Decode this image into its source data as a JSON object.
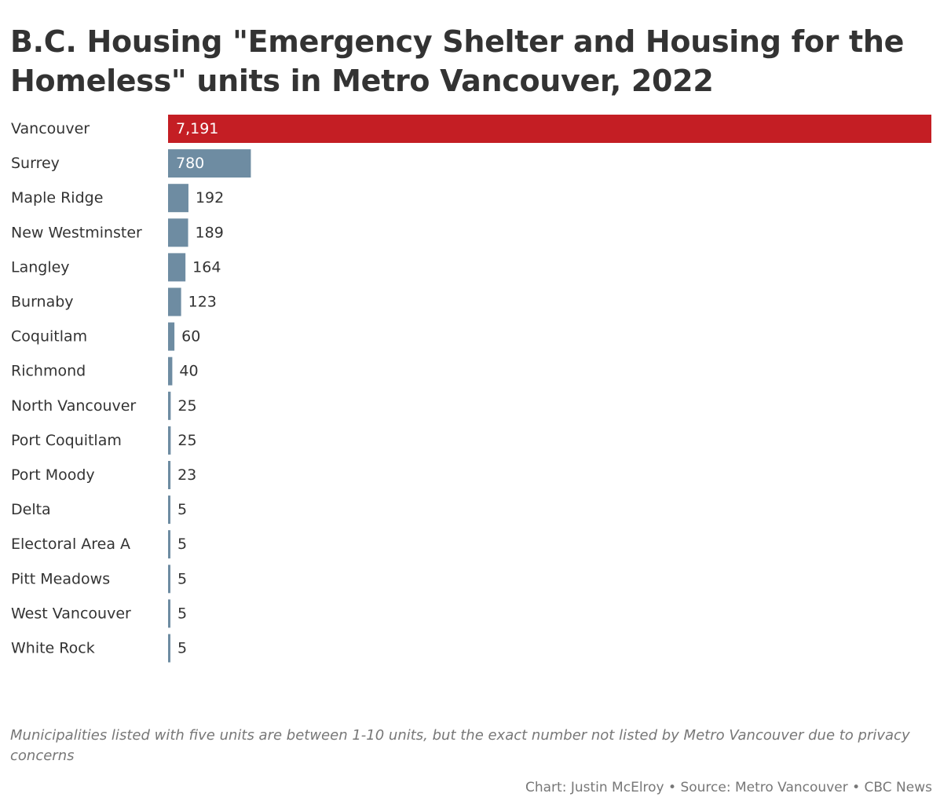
{
  "chart_data": {
    "type": "bar",
    "orientation": "horizontal",
    "title": "B.C. Housing \"Emergency Shelter and Housing for the Homeless\" units in Metro Vancouver, 2022",
    "categories": [
      "Vancouver",
      "Surrey",
      "Maple Ridge",
      "New Westminster",
      "Langley",
      "Burnaby",
      "Coquitlam",
      "Richmond",
      "North Vancouver",
      "Port Coquitlam",
      "Port Moody",
      "Delta",
      "Electoral Area A",
      "Pitt Meadows",
      "West Vancouver",
      "White Rock"
    ],
    "values": [
      7191,
      780,
      192,
      189,
      164,
      123,
      60,
      40,
      25,
      25,
      23,
      5,
      5,
      5,
      5,
      5
    ],
    "value_labels": [
      "7,191",
      "780",
      "192",
      "189",
      "164",
      "123",
      "60",
      "40",
      "25",
      "25",
      "23",
      "5",
      "5",
      "5",
      "5",
      "5"
    ],
    "xlim": [
      0,
      7191
    ],
    "highlight_category": "Vancouver",
    "colors": {
      "highlight": "#c41e24",
      "default": "#6e8ca2",
      "label_inside": "#ffffff",
      "label_outside": "#333333"
    },
    "grid": false,
    "legend": "none",
    "note": "Municipalities listed with five units are between 1-10 units, but the exact number not listed by Metro Vancouver due to privacy concerns",
    "credit": "Chart: Justin McElroy • Source: Metro Vancouver • CBC News"
  }
}
